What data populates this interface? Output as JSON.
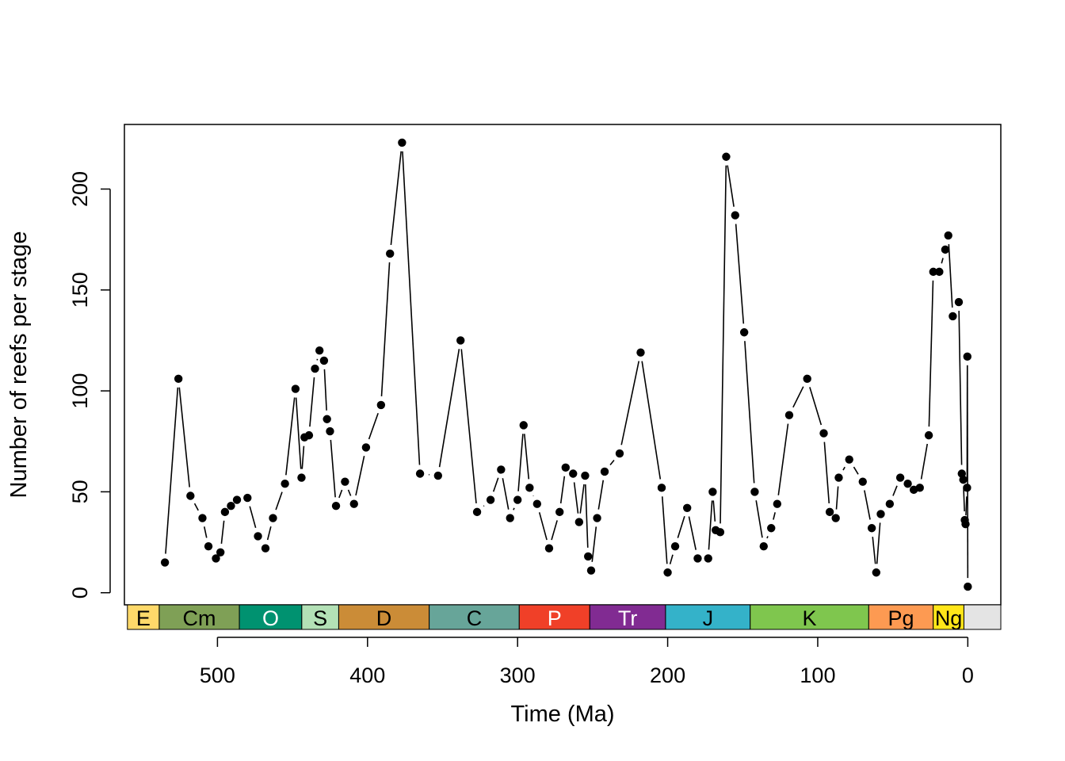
{
  "chart_data": {
    "type": "line",
    "markers": true,
    "xlabel": "Time (Ma)",
    "ylabel": "Number of reefs per stage",
    "xlim": [
      562,
      -22
    ],
    "ylim": [
      -6,
      232
    ],
    "x_reversed": true,
    "xticks": [
      500,
      400,
      300,
      200,
      100,
      0
    ],
    "yticks": [
      0,
      50,
      100,
      150,
      200
    ],
    "grid": false,
    "legend": "none",
    "series": [
      {
        "points": [
          {
            "x": 535,
            "y": 15
          },
          {
            "x": 526,
            "y": 106
          },
          {
            "x": 518,
            "y": 48
          },
          {
            "x": 510,
            "y": 37
          },
          {
            "x": 506,
            "y": 23
          },
          {
            "x": 501,
            "y": 17
          },
          {
            "x": 498,
            "y": 20
          },
          {
            "x": 495,
            "y": 40
          },
          {
            "x": 491,
            "y": 43
          },
          {
            "x": 487,
            "y": 46
          },
          {
            "x": 480,
            "y": 47
          },
          {
            "x": 473,
            "y": 28
          },
          {
            "x": 468,
            "y": 22
          },
          {
            "x": 463,
            "y": 37
          },
          {
            "x": 455,
            "y": 54
          },
          {
            "x": 448,
            "y": 101
          },
          {
            "x": 444,
            "y": 57
          },
          {
            "x": 442,
            "y": 77
          },
          {
            "x": 439,
            "y": 78
          },
          {
            "x": 435,
            "y": 111
          },
          {
            "x": 432,
            "y": 120
          },
          {
            "x": 429,
            "y": 115
          },
          {
            "x": 427,
            "y": 86
          },
          {
            "x": 425,
            "y": 80
          },
          {
            "x": 421,
            "y": 43
          },
          {
            "x": 415,
            "y": 55
          },
          {
            "x": 409,
            "y": 44
          },
          {
            "x": 401,
            "y": 72
          },
          {
            "x": 391,
            "y": 93
          },
          {
            "x": 385,
            "y": 168
          },
          {
            "x": 377,
            "y": 223
          },
          {
            "x": 365,
            "y": 59
          },
          {
            "x": 353,
            "y": 58
          },
          {
            "x": 338,
            "y": 125
          },
          {
            "x": 327,
            "y": 40
          },
          {
            "x": 318,
            "y": 46
          },
          {
            "x": 311,
            "y": 61
          },
          {
            "x": 305,
            "y": 37
          },
          {
            "x": 300,
            "y": 46
          },
          {
            "x": 296,
            "y": 83
          },
          {
            "x": 292,
            "y": 52
          },
          {
            "x": 287,
            "y": 44
          },
          {
            "x": 279,
            "y": 22
          },
          {
            "x": 272,
            "y": 40
          },
          {
            "x": 268,
            "y": 62
          },
          {
            "x": 263,
            "y": 59
          },
          {
            "x": 259,
            "y": 35
          },
          {
            "x": 255,
            "y": 58
          },
          {
            "x": 253,
            "y": 18
          },
          {
            "x": 251,
            "y": 11
          },
          {
            "x": 247,
            "y": 37
          },
          {
            "x": 242,
            "y": 60
          },
          {
            "x": 232,
            "y": 69
          },
          {
            "x": 218,
            "y": 119
          },
          {
            "x": 204,
            "y": 52
          },
          {
            "x": 200,
            "y": 10
          },
          {
            "x": 195,
            "y": 23
          },
          {
            "x": 187,
            "y": 42
          },
          {
            "x": 180,
            "y": 17
          },
          {
            "x": 173,
            "y": 17
          },
          {
            "x": 170,
            "y": 50
          },
          {
            "x": 168,
            "y": 31
          },
          {
            "x": 165,
            "y": 30
          },
          {
            "x": 161,
            "y": 216
          },
          {
            "x": 155,
            "y": 187
          },
          {
            "x": 149,
            "y": 129
          },
          {
            "x": 142,
            "y": 50
          },
          {
            "x": 136,
            "y": 23
          },
          {
            "x": 131,
            "y": 32
          },
          {
            "x": 127,
            "y": 44
          },
          {
            "x": 119,
            "y": 88
          },
          {
            "x": 107,
            "y": 106
          },
          {
            "x": 96,
            "y": 79
          },
          {
            "x": 92,
            "y": 40
          },
          {
            "x": 88,
            "y": 37
          },
          {
            "x": 86,
            "y": 57
          },
          {
            "x": 79,
            "y": 66
          },
          {
            "x": 70,
            "y": 55
          },
          {
            "x": 64,
            "y": 32
          },
          {
            "x": 61,
            "y": 10
          },
          {
            "x": 58,
            "y": 39
          },
          {
            "x": 52,
            "y": 44
          },
          {
            "x": 45,
            "y": 57
          },
          {
            "x": 40,
            "y": 54
          },
          {
            "x": 36,
            "y": 51
          },
          {
            "x": 32,
            "y": 52
          },
          {
            "x": 26,
            "y": 78
          },
          {
            "x": 23,
            "y": 159
          },
          {
            "x": 19,
            "y": 159
          },
          {
            "x": 15,
            "y": 170
          },
          {
            "x": 13,
            "y": 177
          },
          {
            "x": 10,
            "y": 137
          },
          {
            "x": 6,
            "y": 144
          },
          {
            "x": 4,
            "y": 59
          },
          {
            "x": 3,
            "y": 56
          },
          {
            "x": 2,
            "y": 36
          },
          {
            "x": 1.5,
            "y": 34
          },
          {
            "x": 0.5,
            "y": 52
          },
          {
            "x": 0.3,
            "y": 117
          },
          {
            "x": 0,
            "y": 3
          }
        ]
      }
    ],
    "timescale": [
      {
        "label": "E",
        "start": 560,
        "end": 538.8,
        "color": "#FED96A",
        "text_color": "#000000"
      },
      {
        "label": "Cm",
        "start": 538.8,
        "end": 485.4,
        "color": "#7FA056",
        "text_color": "#000000"
      },
      {
        "label": "O",
        "start": 485.4,
        "end": 443.8,
        "color": "#009270",
        "text_color": "#ffffff"
      },
      {
        "label": "S",
        "start": 443.8,
        "end": 419.2,
        "color": "#B3E1B6",
        "text_color": "#000000"
      },
      {
        "label": "D",
        "start": 419.2,
        "end": 358.9,
        "color": "#CB8C37",
        "text_color": "#000000"
      },
      {
        "label": "C",
        "start": 358.9,
        "end": 298.9,
        "color": "#67A599",
        "text_color": "#000000"
      },
      {
        "label": "P",
        "start": 298.9,
        "end": 251.9,
        "color": "#F04028",
        "text_color": "#ffffff"
      },
      {
        "label": "Tr",
        "start": 251.9,
        "end": 201.4,
        "color": "#812B92",
        "text_color": "#ffffff"
      },
      {
        "label": "J",
        "start": 201.4,
        "end": 145,
        "color": "#34B2C9",
        "text_color": "#000000"
      },
      {
        "label": "K",
        "start": 145,
        "end": 66,
        "color": "#7FC64E",
        "text_color": "#000000"
      },
      {
        "label": "Pg",
        "start": 66,
        "end": 23.03,
        "color": "#FD9A52",
        "text_color": "#000000"
      },
      {
        "label": "Ng",
        "start": 23.03,
        "end": 2.58,
        "color": "#FFE619",
        "text_color": "#000000"
      },
      {
        "label": "",
        "start": 2.58,
        "end": -22,
        "color": "#E4E4E4",
        "text_color": "#000000"
      }
    ]
  }
}
